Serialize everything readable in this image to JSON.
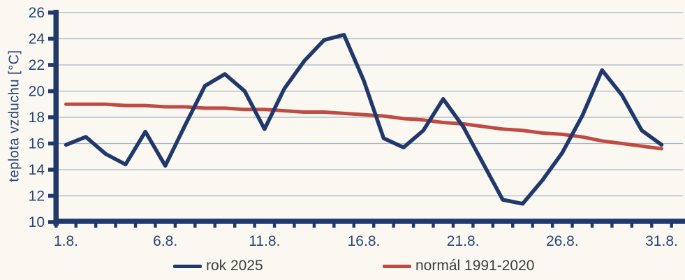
{
  "colors": {
    "background": "#faf8f1",
    "gridline": "#a9b6c6",
    "axis": "#20386b",
    "tick_label": "#2a4578",
    "legend_text": "#404040",
    "series_blue": "#20386b",
    "series_red": "#bf4b43"
  },
  "y_axis": {
    "title": "teplota vzduchu [°C]",
    "min": 10,
    "max": 26,
    "tick_step": 2,
    "tick_labels": [
      "10",
      "12",
      "14",
      "16",
      "18",
      "20",
      "22",
      "24",
      "26"
    ]
  },
  "x_axis": {
    "tick_labels": [
      "1.8.",
      "6.8.",
      "11.8.",
      "16.8.",
      "21.8.",
      "26.8.",
      "31.8."
    ],
    "labeled_days": [
      1,
      6,
      11,
      16,
      21,
      26,
      31
    ],
    "days_total": 31
  },
  "chart_data": {
    "type": "line",
    "title": "",
    "xlabel": "",
    "ylabel": "teplota vzduchu [°C]",
    "ylim": [
      10,
      26
    ],
    "grid": "horizontal",
    "legend_position": "bottom",
    "categories": [
      1,
      2,
      3,
      4,
      5,
      6,
      7,
      8,
      9,
      10,
      11,
      12,
      13,
      14,
      15,
      16,
      17,
      18,
      19,
      20,
      21,
      22,
      23,
      24,
      25,
      26,
      27,
      28,
      29,
      30,
      31
    ],
    "category_unit": "day of August (d.8.)",
    "x_tick_labels": [
      "1.8.",
      "6.8.",
      "11.8.",
      "16.8.",
      "21.8.",
      "26.8.",
      "31.8."
    ],
    "series": [
      {
        "name": "rok 2025",
        "color": "#20386b",
        "values": [
          15.9,
          16.5,
          15.2,
          14.4,
          16.9,
          14.3,
          17.4,
          20.4,
          21.3,
          20.0,
          17.1,
          20.2,
          22.3,
          23.9,
          24.3,
          20.8,
          16.4,
          15.7,
          17.0,
          19.4,
          17.3,
          14.5,
          11.7,
          11.4,
          13.2,
          15.3,
          18.1,
          21.6,
          19.7,
          17.0,
          15.9
        ]
      },
      {
        "name": "normál 1991-2020",
        "color": "#bf4b43",
        "values": [
          19.0,
          19.0,
          19.0,
          18.9,
          18.9,
          18.8,
          18.8,
          18.7,
          18.7,
          18.6,
          18.6,
          18.5,
          18.4,
          18.4,
          18.3,
          18.2,
          18.1,
          17.9,
          17.8,
          17.6,
          17.5,
          17.3,
          17.1,
          17.0,
          16.8,
          16.7,
          16.5,
          16.2,
          16.0,
          15.8,
          15.6
        ]
      }
    ]
  },
  "legend": {
    "item1": "rok 2025",
    "item2": "normál 1991-2020"
  }
}
